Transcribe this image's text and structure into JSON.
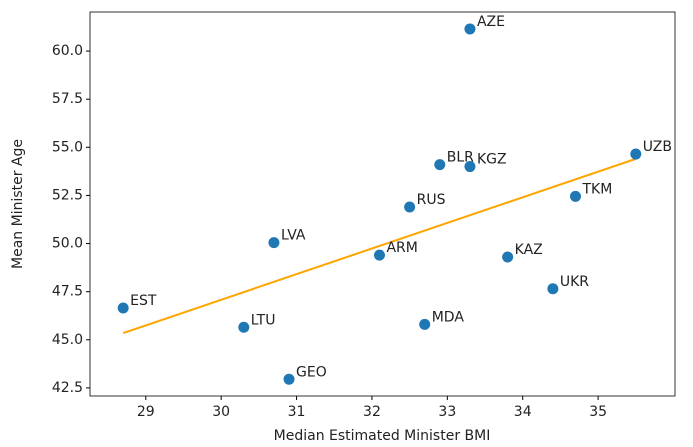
{
  "chart_data": {
    "type": "scatter",
    "x_label": "Median Estimated Minister BMI",
    "y_label": "Mean Minister Age",
    "labels": [
      "AZE",
      "BLR",
      "KGZ",
      "UZB",
      "TKM",
      "RUS",
      "LVA",
      "ARM",
      "KAZ",
      "UKR",
      "EST",
      "LTU",
      "MDA",
      "GEO"
    ],
    "x": [
      33.3,
      32.9,
      33.3,
      35.5,
      34.7,
      32.5,
      30.7,
      32.1,
      33.8,
      34.4,
      28.7,
      30.3,
      32.7,
      30.9
    ],
    "y": [
      61.15,
      54.1,
      54.0,
      54.65,
      52.45,
      51.9,
      50.05,
      49.4,
      49.3,
      47.65,
      46.65,
      45.65,
      45.8,
      42.95
    ],
    "color": "#1f77b4",
    "fit": {
      "x": [
        28.7,
        35.5
      ],
      "y": [
        45.35,
        54.4
      ],
      "color": "orange"
    },
    "xlim": [
      28.26,
      36.02
    ],
    "ylim": [
      42.08,
      62.03
    ],
    "xticks": [
      29,
      30,
      31,
      32,
      33,
      34,
      35
    ],
    "yticks": [
      42.5,
      {
        "value": 45,
        "label": "45.0"
      },
      47.5,
      {
        "value": 50,
        "label": "50.0"
      },
      52.5,
      {
        "value": 55,
        "label": "55.0"
      },
      57.5,
      {
        "value": 60,
        "label": "60.0"
      }
    ]
  }
}
